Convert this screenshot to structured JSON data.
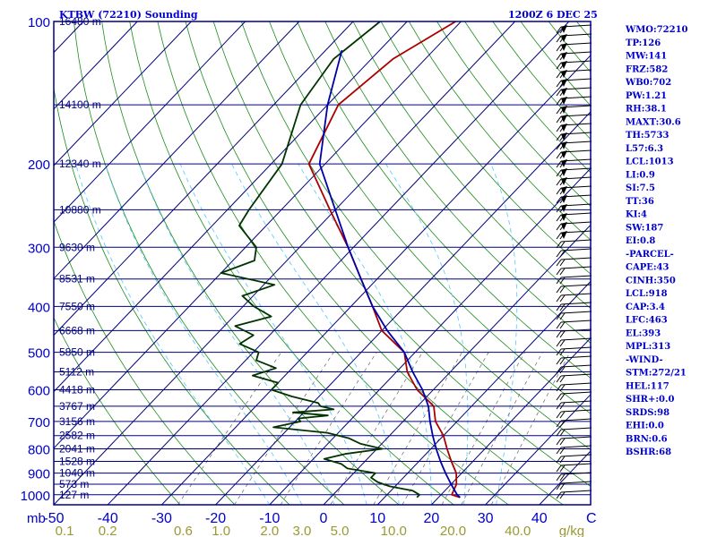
{
  "chart_data": {
    "type": "skew-t",
    "title_left": "KTBW (72210) Sounding",
    "title_right": "1200Z  6 DEC 25",
    "y_axis_unit": "mb",
    "x_axis_unit": "C",
    "mixing_ratio_unit": "g/kg",
    "pressure_ticks": [
      100,
      200,
      300,
      400,
      500,
      600,
      700,
      800,
      900,
      1000
    ],
    "pressure_ylim": [
      100,
      1050
    ],
    "temperature_xlim": [
      -50,
      50
    ],
    "temperature_ticks": [
      -50,
      -40,
      -30,
      -20,
      -10,
      0,
      10,
      20,
      30,
      40
    ],
    "mixing_ratio_labels": [
      {
        "label": "0.1",
        "t": -48
      },
      {
        "label": "0.2",
        "t": -40
      },
      {
        "label": "0.6",
        "t": -26
      },
      {
        "label": "1.0",
        "t": -19
      },
      {
        "label": "2.0",
        "t": -10
      },
      {
        "label": "3.0",
        "t": -4
      },
      {
        "label": "5.0",
        "t": 3
      },
      {
        "label": "10.0",
        "t": 13
      },
      {
        "label": "20.0",
        "t": 24
      },
      {
        "label": "40.0",
        "t": 36
      },
      {
        "label": "g/kg",
        "t": 46
      }
    ],
    "height_levels": [
      {
        "p": 100,
        "label": "16480 m"
      },
      {
        "p": 150,
        "label": "14100 m"
      },
      {
        "p": 200,
        "label": "12340 m"
      },
      {
        "p": 250,
        "label": "10880 m"
      },
      {
        "p": 300,
        "label": "9630 m"
      },
      {
        "p": 350,
        "label": "8531 m"
      },
      {
        "p": 400,
        "label": "7550 m"
      },
      {
        "p": 450,
        "label": "6668 m"
      },
      {
        "p": 500,
        "label": "5850 m"
      },
      {
        "p": 550,
        "label": "5112 m"
      },
      {
        "p": 600,
        "label": "4418 m"
      },
      {
        "p": 650,
        "label": "3767 m"
      },
      {
        "p": 700,
        "label": "3156 m"
      },
      {
        "p": 750,
        "label": "2582 m"
      },
      {
        "p": 800,
        "label": "2041 m"
      },
      {
        "p": 850,
        "label": "1528 m"
      },
      {
        "p": 900,
        "label": "1040 m"
      },
      {
        "p": 950,
        "label": "573 m"
      },
      {
        "p": 1000,
        "label": "127 m"
      }
    ],
    "series": [
      {
        "color": "#aa0000",
        "points": [
          [
            100,
            -61
          ],
          [
            120,
            -66
          ],
          [
            150,
            -68
          ],
          [
            200,
            -63
          ],
          [
            250,
            -51
          ],
          [
            300,
            -41
          ],
          [
            350,
            -33
          ],
          [
            400,
            -26
          ],
          [
            450,
            -20
          ],
          [
            500,
            -12
          ],
          [
            550,
            -8
          ],
          [
            600,
            -3
          ],
          [
            650,
            3
          ],
          [
            700,
            6
          ],
          [
            750,
            10
          ],
          [
            800,
            13
          ],
          [
            850,
            16
          ],
          [
            900,
            19
          ],
          [
            950,
            21
          ],
          [
            1000,
            22
          ],
          [
            1013,
            24
          ]
        ]
      },
      {
        "color": "#003300",
        "points": [
          [
            100,
            -75
          ],
          [
            120,
            -77
          ],
          [
            150,
            -75
          ],
          [
            200,
            -68
          ],
          [
            250,
            -66
          ],
          [
            270,
            -65
          ],
          [
            300,
            -58
          ],
          [
            320,
            -56
          ],
          [
            340,
            -60
          ],
          [
            360,
            -48
          ],
          [
            380,
            -52
          ],
          [
            400,
            -48
          ],
          [
            420,
            -43
          ],
          [
            440,
            -48
          ],
          [
            460,
            -43
          ],
          [
            480,
            -44
          ],
          [
            500,
            -39
          ],
          [
            520,
            -38
          ],
          [
            540,
            -33
          ],
          [
            560,
            -36
          ],
          [
            580,
            -30
          ],
          [
            600,
            -30
          ],
          [
            620,
            -25
          ],
          [
            640,
            -19
          ],
          [
            650,
            -18
          ],
          [
            660,
            -15
          ],
          [
            670,
            -22
          ],
          [
            680,
            -15
          ],
          [
            690,
            -20
          ],
          [
            700,
            -19
          ],
          [
            720,
            -23
          ],
          [
            740,
            -12
          ],
          [
            760,
            -7
          ],
          [
            780,
            -4
          ],
          [
            800,
            1
          ],
          [
            820,
            -5
          ],
          [
            840,
            -8
          ],
          [
            860,
            -4
          ],
          [
            880,
            -2
          ],
          [
            900,
            4
          ],
          [
            920,
            4
          ],
          [
            940,
            6
          ],
          [
            960,
            9
          ],
          [
            980,
            14
          ],
          [
            1000,
            16
          ],
          [
            1013,
            16
          ]
        ]
      },
      {
        "color": "#0000aa",
        "points": [
          [
            115,
            -77
          ],
          [
            150,
            -70
          ],
          [
            200,
            -61
          ],
          [
            250,
            -50
          ],
          [
            300,
            -41
          ],
          [
            350,
            -33
          ],
          [
            400,
            -26
          ],
          [
            450,
            -19
          ],
          [
            500,
            -12
          ],
          [
            550,
            -7
          ],
          [
            600,
            -2
          ],
          [
            650,
            2
          ],
          [
            700,
            5
          ],
          [
            750,
            8
          ],
          [
            800,
            11
          ],
          [
            850,
            14
          ],
          [
            900,
            17
          ],
          [
            950,
            20
          ],
          [
            1000,
            23
          ],
          [
            1013,
            24
          ]
        ]
      }
    ],
    "wind_barbs_note": "wind barbs plotted along right edge",
    "stats": [
      "WMO:72210",
      "TP:126",
      "MW:141",
      "FRZ:582",
      "WB0:702",
      "PW:1.21",
      "RH:38.1",
      "MAXT:30.6",
      "TH:5733",
      "L57:6.3",
      "LCL:1013",
      "LI:0.9",
      "SI:7.5",
      "TT:36",
      "KI:4",
      "SW:187",
      "EI:0.8",
      "-PARCEL-",
      "CAPE:43",
      "CINH:350",
      "LCL:918",
      "CAP:3.4",
      "LFC:463",
      "EL:393",
      "MPL:313",
      "-WIND-",
      "STM:272/21",
      "HEL:117",
      "SHR+:0.0",
      "SRDS:98",
      "EHI:0.0",
      "BRN:0.6",
      "BSHR:68"
    ]
  },
  "colors": {
    "border": "#000080",
    "isobar": "#00007a",
    "isotherm": "#00007a",
    "dry_adiabat": "#1c8c1c",
    "moist_adiabat": "#66ccff",
    "mixing_ratio": "#666666",
    "stats_text": "#0000cc"
  }
}
